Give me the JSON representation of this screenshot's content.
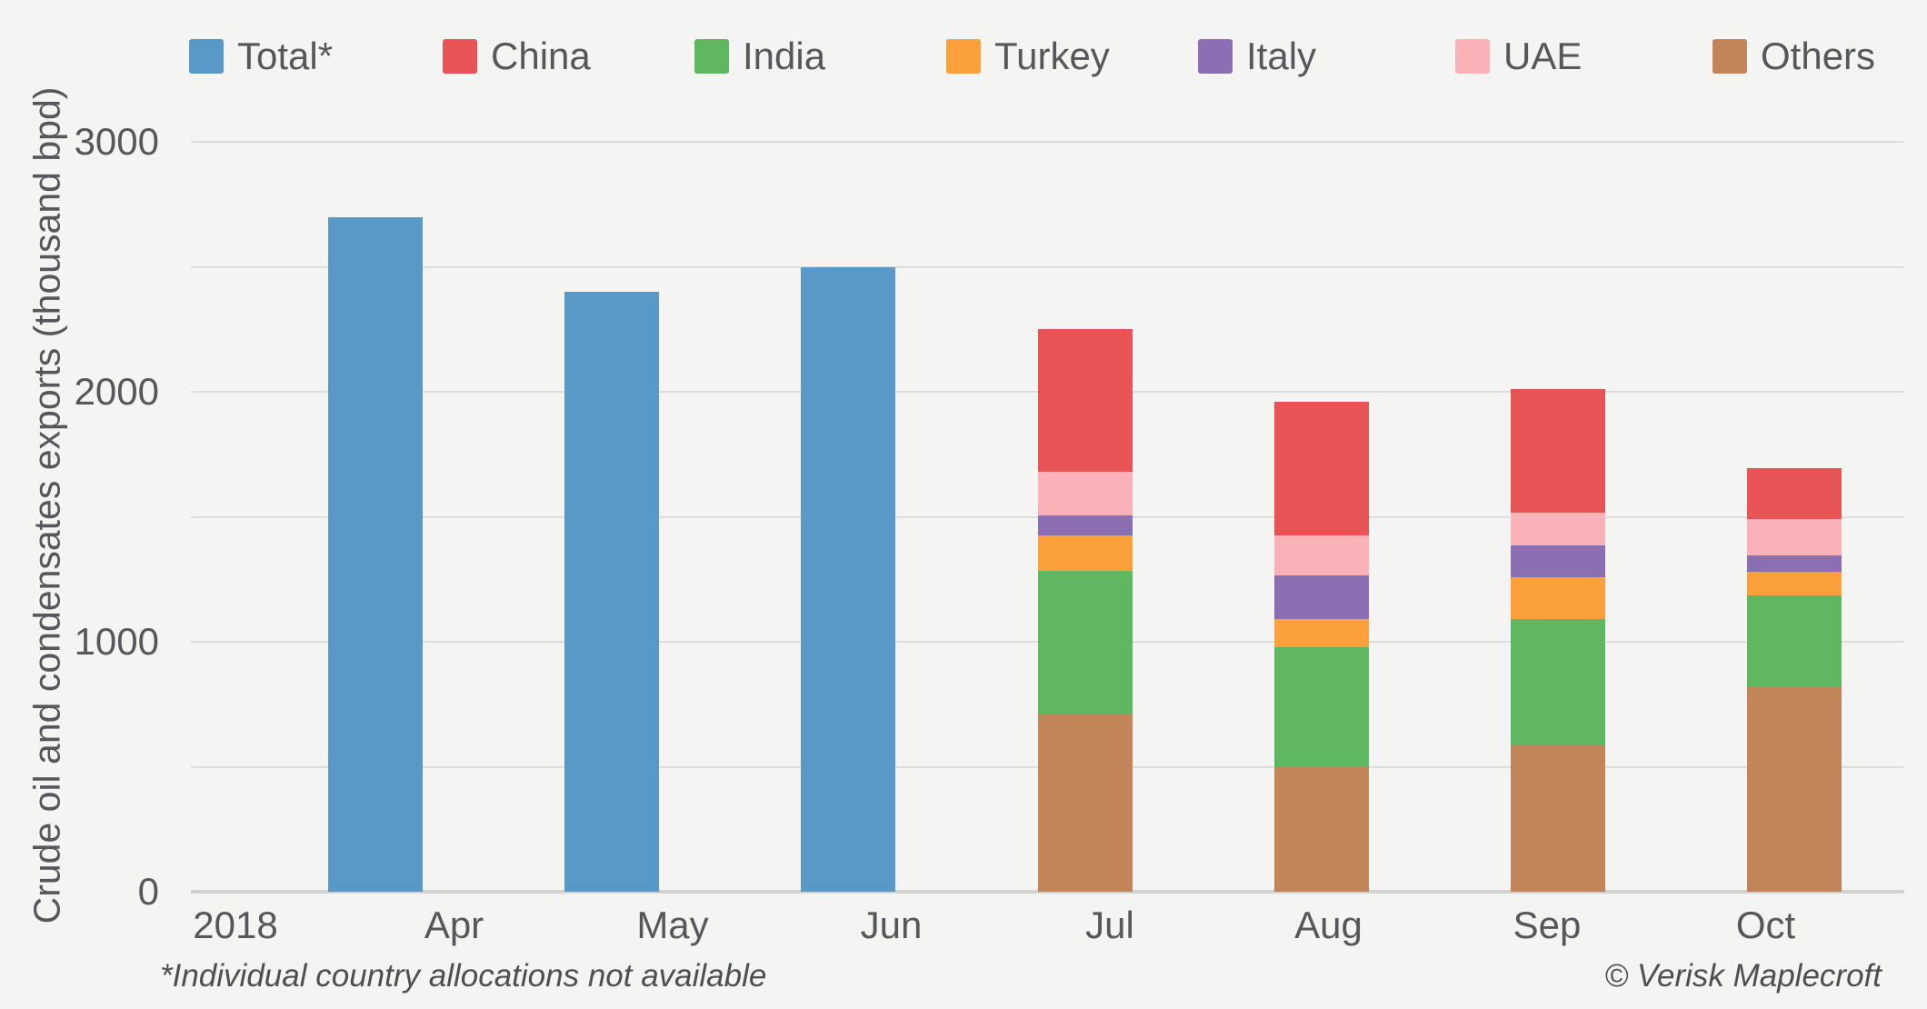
{
  "colors": {
    "background": "#f4f4f3",
    "gridline": "#dddddb",
    "zero_axis_line": "#d2d2d0",
    "text": "#56575b"
  },
  "chart_data": {
    "type": "bar",
    "subtype": "stacked-bar-with-total-bars",
    "title": "",
    "xlabel": "",
    "ylabel": "Crude oil and condensates exports (thousand bpd)",
    "ylim": [
      0,
      3000
    ],
    "gridline_interval": 500,
    "grid": true,
    "legend_position": "top",
    "y_tick_labels": [
      "0",
      "1000",
      "2000",
      "3000"
    ],
    "x_tick_labels": [
      "2018",
      "Apr",
      "May",
      "Jun",
      "Jul",
      "Aug",
      "Sep",
      "Oct"
    ],
    "legend": [
      "Total*",
      "China",
      "India",
      "Turkey",
      "Italy",
      "UAE",
      "Others"
    ],
    "series_colors": {
      "Total*": "#5899c7",
      "China": "#e85456",
      "India": "#5fb761",
      "Turkey": "#fca03c",
      "Italy": "#8c6fb3",
      "UAE": "#fab1b8",
      "Others": "#c2855a"
    },
    "stack_order_bottom_to_top": [
      "Others",
      "India",
      "Turkey",
      "Italy",
      "UAE",
      "China"
    ],
    "bars": [
      {
        "month": "Apr",
        "kind": "total",
        "total": 2700
      },
      {
        "month": "May",
        "kind": "total",
        "total": 2400
      },
      {
        "month": "Jun",
        "kind": "total",
        "total": 2500
      },
      {
        "month": "Jul",
        "kind": "stacked",
        "total": 2250,
        "segments": {
          "Others": 710,
          "India": 575,
          "Turkey": 140,
          "Italy": 80,
          "UAE": 175,
          "China": 570
        }
      },
      {
        "month": "Aug",
        "kind": "stacked",
        "total": 1960,
        "segments": {
          "Others": 500,
          "India": 480,
          "Turkey": 110,
          "Italy": 175,
          "UAE": 160,
          "China": 535
        }
      },
      {
        "month": "Sep",
        "kind": "stacked",
        "total": 2010,
        "segments": {
          "Others": 585,
          "India": 505,
          "Turkey": 170,
          "Italy": 125,
          "UAE": 130,
          "China": 495
        }
      },
      {
        "month": "Oct",
        "kind": "stacked",
        "total": 1695,
        "segments": {
          "Others": 820,
          "India": 365,
          "Turkey": 95,
          "Italy": 65,
          "UAE": 145,
          "China": 205
        }
      }
    ],
    "footnote": "*Individual country allocations not available",
    "credit": "© Verisk Maplecroft"
  }
}
